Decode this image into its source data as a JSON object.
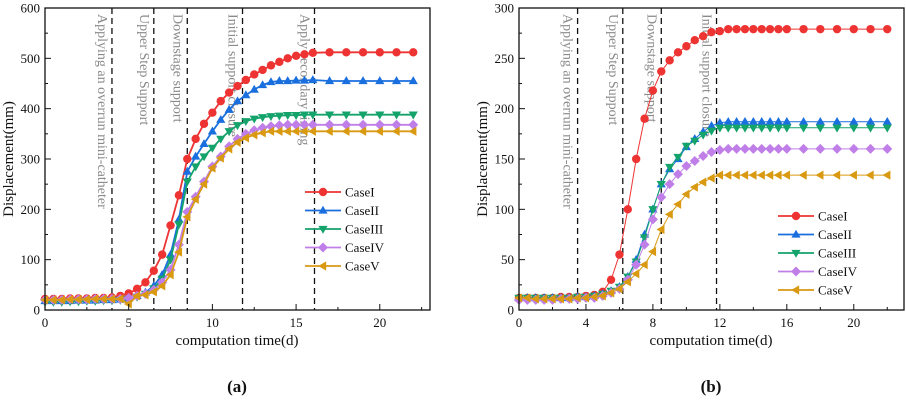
{
  "chart_data": [
    {
      "type": "line",
      "panel_label": "(a)",
      "xlabel": "computation time(d)",
      "ylabel": "Displacement(mm)",
      "xlim": [
        0,
        23
      ],
      "ylim": [
        0,
        600
      ],
      "xticks": [
        0,
        5,
        10,
        15,
        20
      ],
      "yticks": [
        0,
        100,
        200,
        300,
        400,
        500,
        600
      ],
      "legend_position": "bottom-right",
      "stages": [
        {
          "x": 4.0,
          "label": "Applying an overrun mini-catheter"
        },
        {
          "x": 6.5,
          "label": "Upper Step Support"
        },
        {
          "x": 8.5,
          "label": "Downstage support"
        },
        {
          "x": 11.8,
          "label": "Initial support closure"
        },
        {
          "x": 16.1,
          "label": "Apply secondary lining"
        }
      ],
      "x": [
        0,
        0.5,
        1,
        1.5,
        2,
        2.5,
        3,
        3.5,
        4,
        4.5,
        5,
        5.5,
        6,
        6.5,
        7,
        7.5,
        8,
        8.5,
        9,
        9.5,
        10,
        10.5,
        11,
        11.5,
        12,
        12.5,
        13,
        13.5,
        14,
        14.5,
        15,
        15.5,
        16,
        17,
        18,
        19,
        20,
        21,
        22
      ],
      "series": [
        {
          "name": "CaseI",
          "color": "#ee3333",
          "marker": "circle",
          "values": [
            22,
            22,
            22,
            23,
            23,
            23,
            24,
            24,
            25,
            28,
            33,
            42,
            55,
            78,
            110,
            168,
            228,
            300,
            340,
            370,
            392,
            415,
            432,
            445,
            457,
            468,
            477,
            486,
            493,
            500,
            505,
            508,
            511,
            512,
            512,
            512,
            512,
            512,
            512
          ]
        },
        {
          "name": "CaseII",
          "color": "#1a6fdf",
          "marker": "triangle-up",
          "values": [
            18,
            18,
            18,
            18,
            19,
            19,
            19,
            20,
            20,
            21,
            23,
            28,
            35,
            48,
            70,
            110,
            180,
            275,
            305,
            330,
            355,
            378,
            398,
            415,
            427,
            438,
            447,
            453,
            455,
            455,
            456,
            456,
            457,
            455,
            455,
            455,
            455,
            455,
            455
          ]
        },
        {
          "name": "CaseIII",
          "color": "#14a36b",
          "marker": "triangle-down",
          "values": [
            16,
            16,
            16,
            17,
            17,
            18,
            18,
            19,
            19,
            20,
            22,
            26,
            32,
            43,
            62,
            100,
            170,
            255,
            285,
            305,
            322,
            340,
            355,
            367,
            375,
            380,
            383,
            385,
            386,
            387,
            387,
            388,
            388,
            388,
            388,
            388,
            388,
            388,
            388
          ]
        },
        {
          "name": "CaseIV",
          "color": "#c07fe8",
          "marker": "diamond",
          "values": [
            20,
            20,
            20,
            21,
            21,
            21,
            22,
            22,
            22,
            22,
            24,
            28,
            32,
            40,
            55,
            80,
            130,
            195,
            225,
            255,
            285,
            305,
            325,
            340,
            350,
            357,
            362,
            365,
            367,
            368,
            368,
            368,
            368,
            368,
            368,
            368,
            368,
            368,
            368
          ]
        },
        {
          "name": "CaseV",
          "color": "#d99a12",
          "marker": "triangle-left",
          "values": [
            20,
            20,
            20,
            21,
            21,
            21,
            22,
            22,
            22,
            22,
            12,
            28,
            30,
            36,
            48,
            70,
            115,
            185,
            220,
            250,
            282,
            302,
            320,
            333,
            342,
            348,
            352,
            355,
            355,
            355,
            355,
            355,
            355,
            355,
            355,
            355,
            355,
            355,
            355
          ]
        }
      ]
    },
    {
      "type": "line",
      "panel_label": "(b)",
      "xlabel": "computation time(d)",
      "ylabel": "Displacement(mm)",
      "xlim": [
        0,
        23
      ],
      "ylim": [
        0,
        300
      ],
      "xticks": [
        0,
        4,
        8,
        12,
        16,
        20
      ],
      "yticks": [
        0,
        50,
        100,
        150,
        200,
        250,
        300
      ],
      "legend_position": "bottom-right",
      "stages": [
        {
          "x": 3.5,
          "label": "Applying an overrun mini-catheter"
        },
        {
          "x": 6.2,
          "label": "Upper Step Support"
        },
        {
          "x": 8.5,
          "label": "Downstage support"
        },
        {
          "x": 11.8,
          "label": "Initial support closure"
        }
      ],
      "x": [
        0,
        0.5,
        1,
        1.5,
        2,
        2.5,
        3,
        3.5,
        4,
        4.5,
        5,
        5.5,
        6,
        6.5,
        7,
        7.5,
        8,
        8.5,
        9,
        9.5,
        10,
        10.5,
        11,
        11.5,
        12,
        12.5,
        13,
        13.5,
        14,
        14.5,
        15,
        15.5,
        16,
        17,
        18,
        19,
        20,
        21,
        22
      ],
      "series": [
        {
          "name": "CaseI",
          "color": "#ee3333",
          "marker": "circle",
          "values": [
            12,
            12,
            12,
            12,
            12,
            13,
            13,
            13,
            14,
            15,
            18,
            30,
            55,
            100,
            150,
            190,
            218,
            237,
            248,
            256,
            262,
            268,
            272,
            276,
            277,
            279,
            279,
            279,
            279,
            279,
            279,
            279,
            279,
            279,
            279,
            279,
            279,
            279,
            279
          ]
        },
        {
          "name": "CaseII",
          "color": "#1a6fdf",
          "marker": "triangle-up",
          "values": [
            12,
            12,
            12,
            12,
            12,
            12,
            12,
            13,
            13,
            14,
            16,
            19,
            23,
            33,
            50,
            75,
            100,
            125,
            140,
            150,
            162,
            170,
            177,
            183,
            186,
            187,
            187,
            187,
            187,
            187,
            187,
            187,
            187,
            187,
            187,
            187,
            187,
            187,
            187
          ]
        },
        {
          "name": "CaseIII",
          "color": "#14a36b",
          "marker": "triangle-down",
          "values": [
            12,
            12,
            12,
            12,
            12,
            12,
            12,
            13,
            13,
            14,
            16,
            19,
            23,
            33,
            48,
            72,
            100,
            125,
            142,
            152,
            163,
            168,
            174,
            178,
            181,
            181,
            181,
            181,
            181,
            181,
            181,
            181,
            181,
            181,
            181,
            181,
            181,
            181,
            181
          ]
        },
        {
          "name": "CaseIV",
          "color": "#c07fe8",
          "marker": "diamond",
          "values": [
            10,
            10,
            10,
            10,
            10,
            11,
            11,
            11,
            12,
            12,
            14,
            17,
            21,
            30,
            45,
            65,
            90,
            112,
            125,
            135,
            143,
            148,
            153,
            157,
            159,
            160,
            160,
            160,
            160,
            160,
            160,
            160,
            160,
            160,
            160,
            160,
            160,
            160,
            160
          ]
        },
        {
          "name": "CaseV",
          "color": "#d99a12",
          "marker": "triangle-left",
          "values": [
            12,
            12,
            11,
            11,
            11,
            11,
            11,
            12,
            12,
            13,
            14,
            17,
            21,
            28,
            36,
            45,
            58,
            80,
            95,
            105,
            115,
            122,
            127,
            131,
            134,
            134,
            134,
            134,
            134,
            134,
            134,
            134,
            134,
            134,
            134,
            134,
            134,
            134,
            134
          ]
        }
      ]
    }
  ]
}
